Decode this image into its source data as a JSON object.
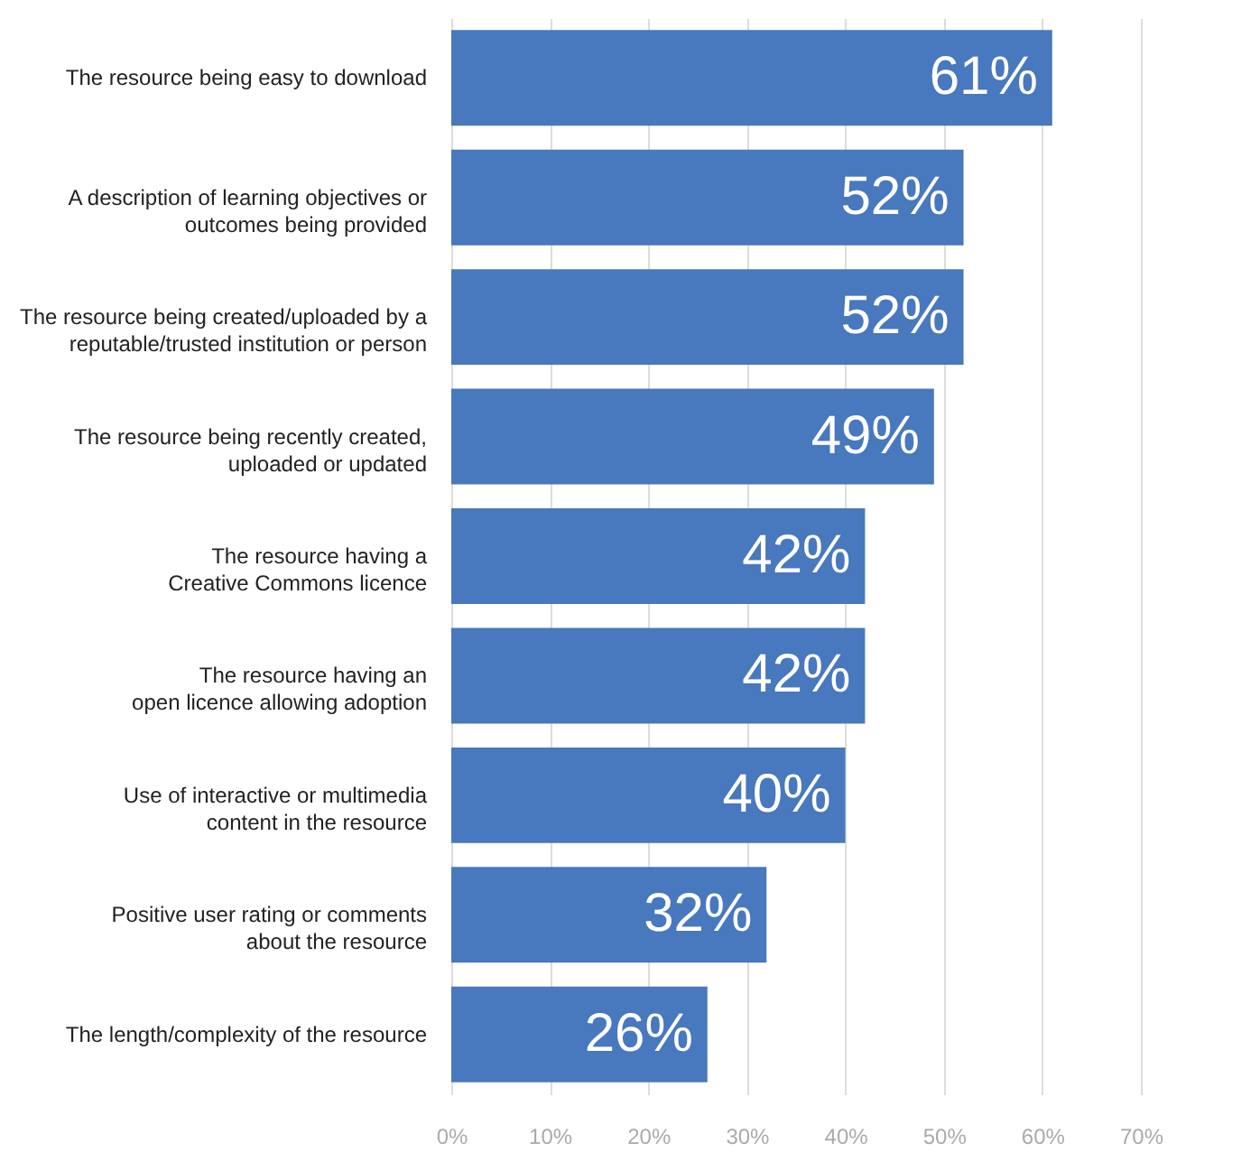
{
  "chart_data": {
    "type": "bar",
    "orientation": "horizontal",
    "categories": [
      "The resource being easy to download",
      "A description of learning objectives or\noutcomes being provided",
      "The resource being created/uploaded by a\nreputable/trusted institution or person",
      "The resource being recently created,\nuploaded or updated",
      "The resource having a\nCreative Commons licence",
      "The resource having an\nopen licence allowing adoption",
      "Use of interactive or multimedia\ncontent in the resource",
      "Positive user rating or comments\nabout the resource",
      "The length/complexity of the resource"
    ],
    "values": [
      61,
      52,
      52,
      49,
      42,
      42,
      40,
      32,
      26
    ],
    "value_labels": [
      "61%",
      "52%",
      "52%",
      "49%",
      "42%",
      "42%",
      "40%",
      "32%",
      "26%"
    ],
    "color": "#4878bd",
    "xlim": [
      0,
      70
    ],
    "xticks": [
      {
        "value": 0,
        "label": "0%"
      },
      {
        "value": 10,
        "label": "10%"
      },
      {
        "value": 20,
        "label": "20%"
      },
      {
        "value": 30,
        "label": "30%"
      },
      {
        "value": 40,
        "label": "40%"
      },
      {
        "value": 50,
        "label": "50%"
      },
      {
        "value": 60,
        "label": "60%"
      },
      {
        "value": 70,
        "label": "70%"
      }
    ],
    "grid": "x"
  }
}
